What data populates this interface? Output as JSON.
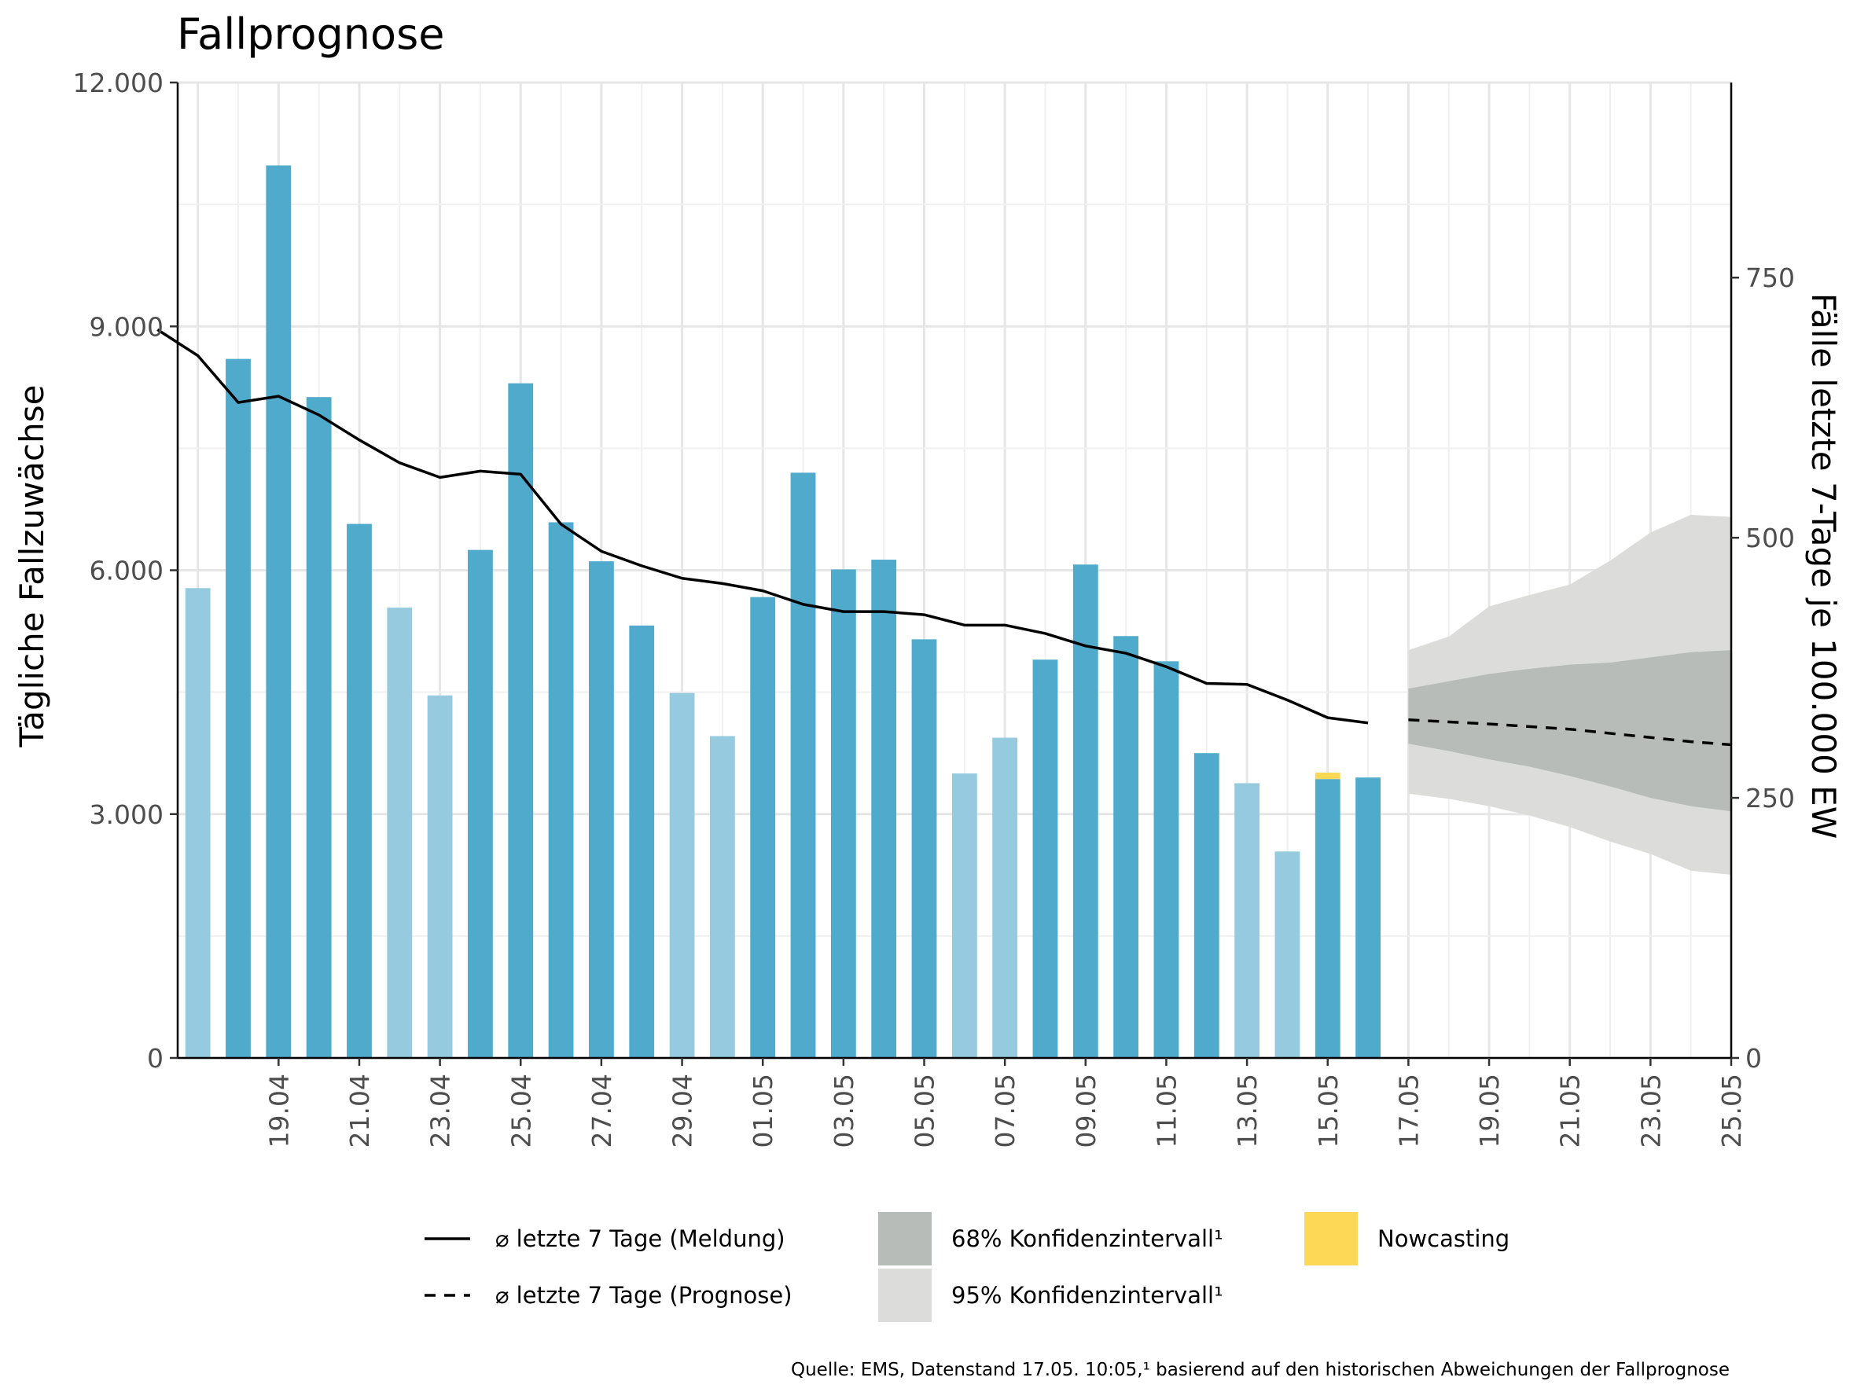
{
  "chart_data": {
    "type": "bar",
    "title": "Fallprognose",
    "ylabel": "Tägliche Fallzuwächse",
    "ylabel_right": "Fälle letzte 7-Tage je 100.000 EW",
    "ylim": [
      0,
      12000
    ],
    "ylim_right": [
      0,
      937.5
    ],
    "y_ticks": [
      0,
      3000,
      6000,
      9000,
      12000
    ],
    "y_tick_labels": [
      "0",
      "3.000",
      "6.000",
      "9.000",
      "12.000"
    ],
    "y_right_ticks": [
      0,
      250,
      500,
      750
    ],
    "y_right_tick_labels": [
      "0",
      "250",
      "500",
      "750"
    ],
    "x_range": [
      "2021-04-17",
      "2021-05-25"
    ],
    "x_tick_labels": [
      "19.04",
      "21.04",
      "23.04",
      "25.04",
      "27.04",
      "29.04",
      "01.05",
      "03.05",
      "05.05",
      "07.05",
      "09.05",
      "11.05",
      "13.05",
      "15.05",
      "17.05",
      "19.05",
      "21.05",
      "23.05",
      "25.05"
    ],
    "grid": true,
    "legend_position": "bottom",
    "colors": {
      "weekday_bar": "#4faacb",
      "weekend_bar": "#96cadf",
      "nowcasting": "#fdd856",
      "ci68": "#b7bcb8",
      "ci95": "#dcdddb",
      "line": "#000000"
    },
    "bars": {
      "dates": [
        "2021-04-17",
        "2021-04-18",
        "2021-04-19",
        "2021-04-20",
        "2021-04-21",
        "2021-04-22",
        "2021-04-23",
        "2021-04-24",
        "2021-04-25",
        "2021-04-26",
        "2021-04-27",
        "2021-04-28",
        "2021-04-29",
        "2021-04-30",
        "2021-05-01",
        "2021-05-02",
        "2021-05-03",
        "2021-05-04",
        "2021-05-05",
        "2021-05-06",
        "2021-05-07",
        "2021-05-08",
        "2021-05-09",
        "2021-05-10",
        "2021-05-11",
        "2021-05-12",
        "2021-05-13",
        "2021-05-14",
        "2021-05-15",
        "2021-05-16"
      ],
      "values": [
        5780,
        8600,
        10980,
        8130,
        6570,
        5540,
        4460,
        6250,
        8300,
        6590,
        6110,
        5320,
        4490,
        3960,
        5670,
        7200,
        6010,
        6130,
        5150,
        3500,
        3940,
        4900,
        6070,
        5190,
        4880,
        3750,
        3380,
        2540,
        3430,
        3450
      ],
      "weekend": [
        true,
        false,
        false,
        false,
        false,
        true,
        true,
        false,
        false,
        false,
        false,
        false,
        true,
        true,
        false,
        false,
        false,
        false,
        false,
        true,
        true,
        false,
        false,
        false,
        false,
        false,
        true,
        true,
        false,
        false
      ],
      "nowcasting_added": [
        0,
        0,
        0,
        0,
        0,
        0,
        0,
        0,
        0,
        0,
        0,
        0,
        0,
        0,
        0,
        0,
        0,
        0,
        0,
        0,
        0,
        0,
        0,
        0,
        0,
        0,
        0,
        0,
        80,
        0
      ]
    },
    "series": [
      {
        "name": "⌀ letzte 7 Tage (Meldung)",
        "axis": "right",
        "dates": [
          "2021-04-16",
          "2021-04-17",
          "2021-04-18",
          "2021-04-19",
          "2021-04-20",
          "2021-04-21",
          "2021-04-22",
          "2021-04-23",
          "2021-04-24",
          "2021-04-25",
          "2021-04-26",
          "2021-04-27",
          "2021-04-28",
          "2021-04-29",
          "2021-04-30",
          "2021-05-01",
          "2021-05-02",
          "2021-05-03",
          "2021-05-04",
          "2021-05-05",
          "2021-05-06",
          "2021-05-07",
          "2021-05-08",
          "2021-05-09",
          "2021-05-10",
          "2021-05-11",
          "2021-05-12",
          "2021-05-13",
          "2021-05-14",
          "2021-05-15",
          "2021-05-16"
        ],
        "values": [
          700,
          675,
          630,
          636,
          618,
          594,
          572,
          558,
          564,
          561,
          513,
          487,
          473,
          461,
          456,
          449,
          436,
          429,
          429,
          426,
          416,
          416,
          408,
          396,
          389,
          376,
          360,
          359,
          344,
          327,
          322
        ]
      },
      {
        "name": "⌀ letzte 7 Tage (Prognose)",
        "axis": "right",
        "dates": [
          "2021-05-17",
          "2021-05-19",
          "2021-05-21",
          "2021-05-23",
          "2021-05-24",
          "2021-05-25"
        ],
        "values": [
          325,
          321,
          316,
          308,
          304,
          301
        ]
      }
    ],
    "confidence_bands": {
      "axis": "right",
      "dates": [
        "2021-05-17",
        "2021-05-18",
        "2021-05-19",
        "2021-05-20",
        "2021-05-21",
        "2021-05-22",
        "2021-05-23",
        "2021-05-24",
        "2021-05-25"
      ],
      "ci95_upper": [
        392,
        405,
        434,
        445,
        455,
        478,
        505,
        522,
        520
      ],
      "ci95_lower": [
        254,
        249,
        242,
        233,
        222,
        208,
        196,
        180,
        176
      ],
      "ci68_upper": [
        355,
        362,
        369,
        374,
        378,
        380,
        385,
        390,
        392
      ],
      "ci68_lower": [
        302,
        295,
        287,
        280,
        271,
        261,
        250,
        242,
        237
      ]
    },
    "legend": [
      {
        "key": "line-solid",
        "label": "⌀ letzte 7 Tage (Meldung)"
      },
      {
        "key": "line-dashed",
        "label": "⌀ letzte 7 Tage (Prognose)"
      },
      {
        "key": "ci68",
        "label": "68% Konfidenzintervall¹"
      },
      {
        "key": "ci95",
        "label": "95% Konfidenzintervall¹"
      },
      {
        "key": "nowcasting",
        "label": "Nowcasting"
      }
    ],
    "source": "Quelle: EMS, Datenstand 17.05. 10:05,¹ basierend auf den historischen Abweichungen der Fallprognose"
  }
}
